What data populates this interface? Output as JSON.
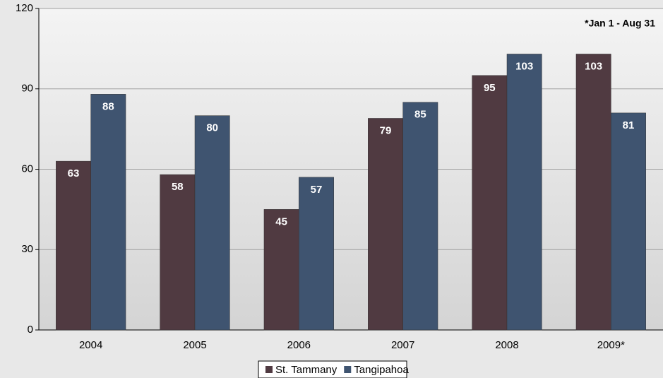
{
  "chart_data": {
    "type": "bar",
    "annotation": "*Jan 1 - Aug 31",
    "categories": [
      "2004",
      "2005",
      "2006",
      "2007",
      "2008",
      "2009*"
    ],
    "series": [
      {
        "name": "St. Tammany",
        "color": "#503a41",
        "values": [
          63,
          58,
          45,
          79,
          95,
          103
        ]
      },
      {
        "name": "Tangipahoa",
        "color": "#3f5470",
        "values": [
          88,
          80,
          57,
          85,
          103,
          81
        ]
      }
    ],
    "ylim": [
      0,
      120
    ],
    "yticks": [
      0,
      30,
      60,
      90,
      120
    ],
    "grid": true,
    "legend": "bottom"
  }
}
